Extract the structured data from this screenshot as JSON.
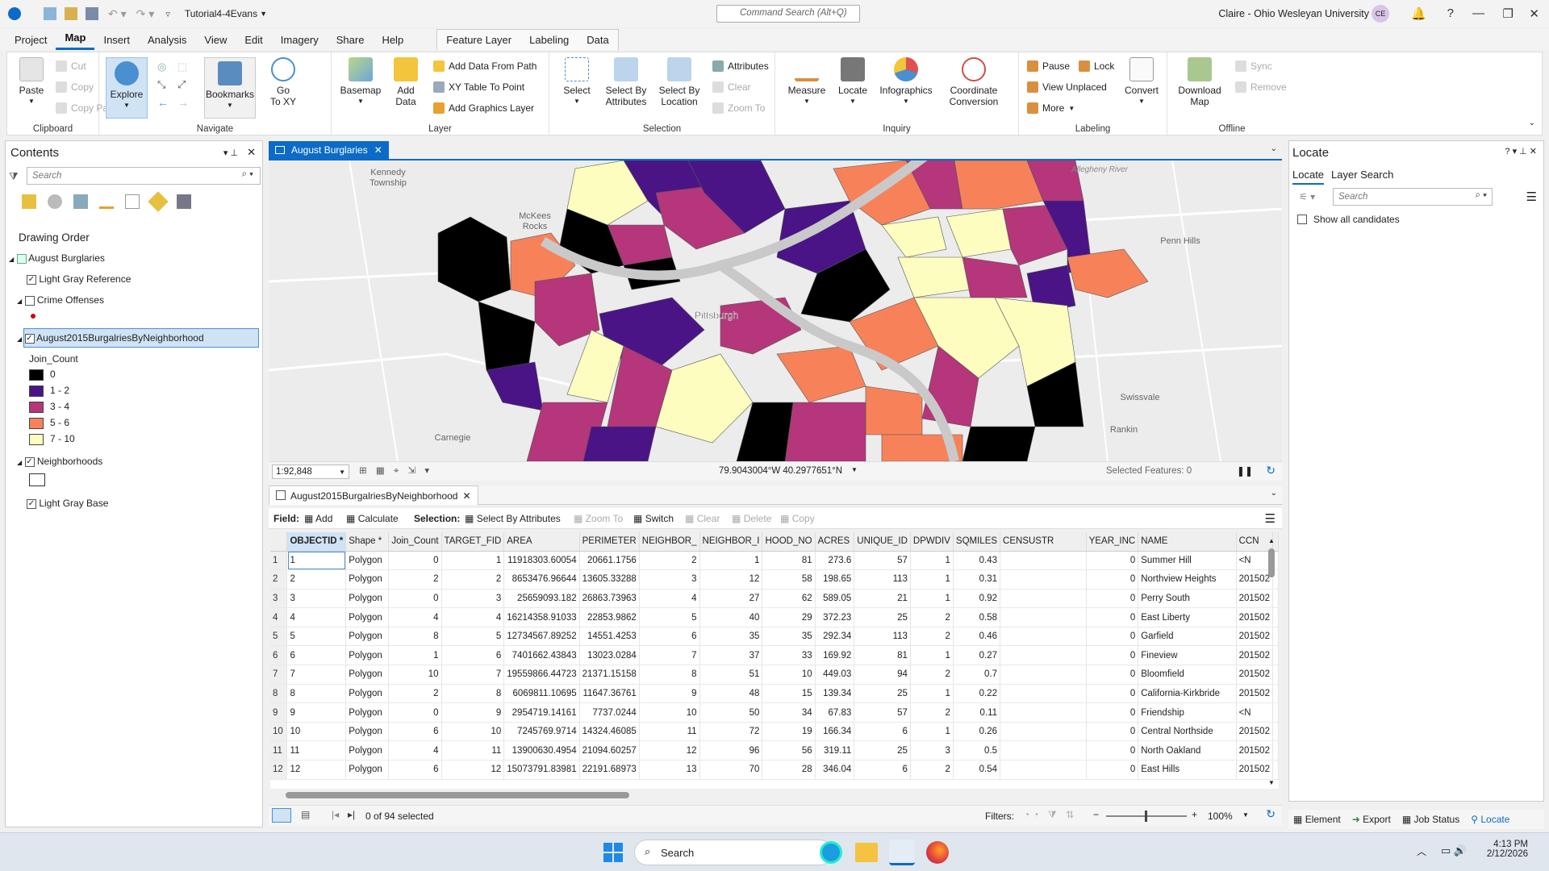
{
  "app": {
    "doc_title": "Tutorial4-4Evans",
    "command_search": "Command Search (Alt+Q)",
    "user": "Claire - Ohio Wesleyan University",
    "initials": "CE"
  },
  "menu": [
    "Project",
    "Map",
    "Insert",
    "Analysis",
    "View",
    "Edit",
    "Imagery",
    "Share",
    "Help"
  ],
  "context_tabs": [
    "Feature Layer",
    "Labeling",
    "Data"
  ],
  "ribbon": {
    "clipboard": {
      "label": "Clipboard",
      "paste": "Paste",
      "cut": "Cut",
      "copy": "Copy",
      "copy_path": "Copy Path"
    },
    "navigate": {
      "label": "Navigate",
      "explore": "Explore",
      "bookmarks": "Bookmarks",
      "goto": "Go\nTo XY"
    },
    "layer": {
      "label": "Layer",
      "basemap": "Basemap",
      "add_data": "Add\nData",
      "add_from_path": "Add Data From Path",
      "xy_table": "XY Table To Point",
      "add_graphics": "Add Graphics Layer"
    },
    "selection": {
      "label": "Selection",
      "select": "Select",
      "by_attr": "Select By\nAttributes",
      "by_loc": "Select By\nLocation",
      "attributes": "Attributes",
      "clear": "Clear",
      "zoom_to": "Zoom To"
    },
    "inquiry": {
      "label": "Inquiry",
      "measure": "Measure",
      "locate": "Locate",
      "infographics": "Infographics",
      "coord": "Coordinate\nConversion"
    },
    "labeling": {
      "label": "Labeling",
      "pause": "Pause",
      "lock": "Lock",
      "view_unplaced": "View Unplaced",
      "more": "More",
      "convert": "Convert"
    },
    "offline": {
      "label": "Offline",
      "download": "Download\nMap",
      "sync": "Sync",
      "remove": "Remove"
    }
  },
  "contents": {
    "title": "Contents",
    "search": "Search",
    "drawing_order": "Drawing Order",
    "map": "August Burglaries",
    "light_gray_ref": "Light Gray Reference",
    "crime": "Crime Offenses",
    "layer": "August2015BurgalriesByNeighborhood",
    "field": "Join_Count",
    "classes": [
      {
        "label": "0",
        "color": "#000000"
      },
      {
        "label": "1 - 2",
        "color": "#4a1486"
      },
      {
        "label": "3 - 4",
        "color": "#b5367a"
      },
      {
        "label": "5 - 6",
        "color": "#f7825a"
      },
      {
        "label": "7 - 10",
        "color": "#fcfdbf"
      }
    ],
    "neighborhoods": "Neighborhoods",
    "light_gray_base": "Light Gray Base"
  },
  "map_tab": "August Burglaries",
  "map": {
    "labels": {
      "kennedy": "Kennedy\nTownship",
      "mckees": "McKees\nRocks",
      "pittsburgh": "Pittsburgh",
      "penn": "Penn Hills",
      "swissvale": "Swissvale",
      "rankin": "Rankin",
      "carnegie": "Carnegie",
      "allegheny": "Allegheny River"
    },
    "scale": "1:92,848",
    "coords": "79.9043004°W 40.2977651°N",
    "selected_features": "Selected Features: 0"
  },
  "locate": {
    "title": "Locate",
    "tab1": "Locate",
    "tab2": "Layer Search",
    "search": "Search",
    "show_all": "Show all candidates"
  },
  "table": {
    "tab": "August2015BurgalriesByNeighborhood",
    "toolbar": {
      "field": "Field:",
      "add": "Add",
      "calculate": "Calculate",
      "selection": "Selection:",
      "select_by_attr": "Select By Attributes",
      "zoom_to": "Zoom To",
      "switch": "Switch",
      "clear": "Clear",
      "delete": "Delete",
      "copy": "Copy"
    },
    "columns": [
      "OBJECTID *",
      "Shape *",
      "Join_Count",
      "TARGET_FID",
      "AREA",
      "PERIMETER",
      "NEIGHBOR_",
      "NEIGHBOR_I",
      "HOOD_NO",
      "ACRES",
      "UNIQUE_ID",
      "DPWDIV",
      "SQMILES",
      "CENSUSTR",
      "YEAR_INC",
      "NAME",
      "CCN"
    ],
    "rows": [
      [
        "1",
        "Polygon",
        "0",
        "1",
        "11918303.60054",
        "20661.1756",
        "2",
        "1",
        "81",
        "273.6",
        "57",
        "1",
        "0.43",
        "",
        "0",
        "Summer Hill",
        "<N"
      ],
      [
        "2",
        "Polygon",
        "2",
        "2",
        "8653476.96644",
        "13605.33288",
        "3",
        "12",
        "58",
        "198.65",
        "113",
        "1",
        "0.31",
        "",
        "0",
        "Northview Heights",
        "201502"
      ],
      [
        "3",
        "Polygon",
        "0",
        "3",
        "25659093.182",
        "26863.73963",
        "4",
        "27",
        "62",
        "589.05",
        "21",
        "1",
        "0.92",
        "",
        "0",
        "Perry South",
        "201502"
      ],
      [
        "4",
        "Polygon",
        "4",
        "4",
        "16214358.91033",
        "22853.9862",
        "5",
        "40",
        "29",
        "372.23",
        "25",
        "2",
        "0.58",
        "",
        "0",
        "East Liberty",
        "201502"
      ],
      [
        "5",
        "Polygon",
        "8",
        "5",
        "12734567.89252",
        "14551.4253",
        "6",
        "35",
        "35",
        "292.34",
        "113",
        "2",
        "0.46",
        "",
        "0",
        "Garfield",
        "201502"
      ],
      [
        "6",
        "Polygon",
        "1",
        "6",
        "7401662.43843",
        "13023.0284",
        "7",
        "37",
        "33",
        "169.92",
        "81",
        "1",
        "0.27",
        "",
        "0",
        "Fineview",
        "201502"
      ],
      [
        "7",
        "Polygon",
        "10",
        "7",
        "19559866.44723",
        "21371.15158",
        "8",
        "51",
        "10",
        "449.03",
        "94",
        "2",
        "0.7",
        "",
        "0",
        "Bloomfield",
        "201502"
      ],
      [
        "8",
        "Polygon",
        "2",
        "8",
        "6069811.10695",
        "11647.36761",
        "9",
        "48",
        "15",
        "139.34",
        "25",
        "1",
        "0.22",
        "",
        "0",
        "California-Kirkbride",
        "201502"
      ],
      [
        "9",
        "Polygon",
        "0",
        "9",
        "2954719.14161",
        "7737.0244",
        "10",
        "50",
        "34",
        "67.83",
        "57",
        "2",
        "0.11",
        "",
        "0",
        "Friendship",
        "<N"
      ],
      [
        "10",
        "Polygon",
        "6",
        "10",
        "7245769.9714",
        "14324.46085",
        "11",
        "72",
        "19",
        "166.34",
        "6",
        "1",
        "0.26",
        "",
        "0",
        "Central Northside",
        "201502"
      ],
      [
        "11",
        "Polygon",
        "4",
        "11",
        "13900630.4954",
        "21094.60257",
        "12",
        "96",
        "56",
        "319.11",
        "25",
        "3",
        "0.5",
        "",
        "0",
        "North Oakland",
        "201502"
      ],
      [
        "12",
        "Polygon",
        "6",
        "12",
        "15073791.83981",
        "22191.68973",
        "13",
        "70",
        "28",
        "346.04",
        "6",
        "2",
        "0.54",
        "",
        "0",
        "East Hills",
        "201502"
      ]
    ],
    "status": "0 of 94 selected",
    "filters": "Filters:",
    "zoom": "100%"
  },
  "bottom_tabs": [
    "Element",
    "Export",
    "Job Status",
    "Locate"
  ],
  "taskbar": {
    "search": "Search",
    "time": "4:13 PM",
    "date": "2/12/2026"
  }
}
